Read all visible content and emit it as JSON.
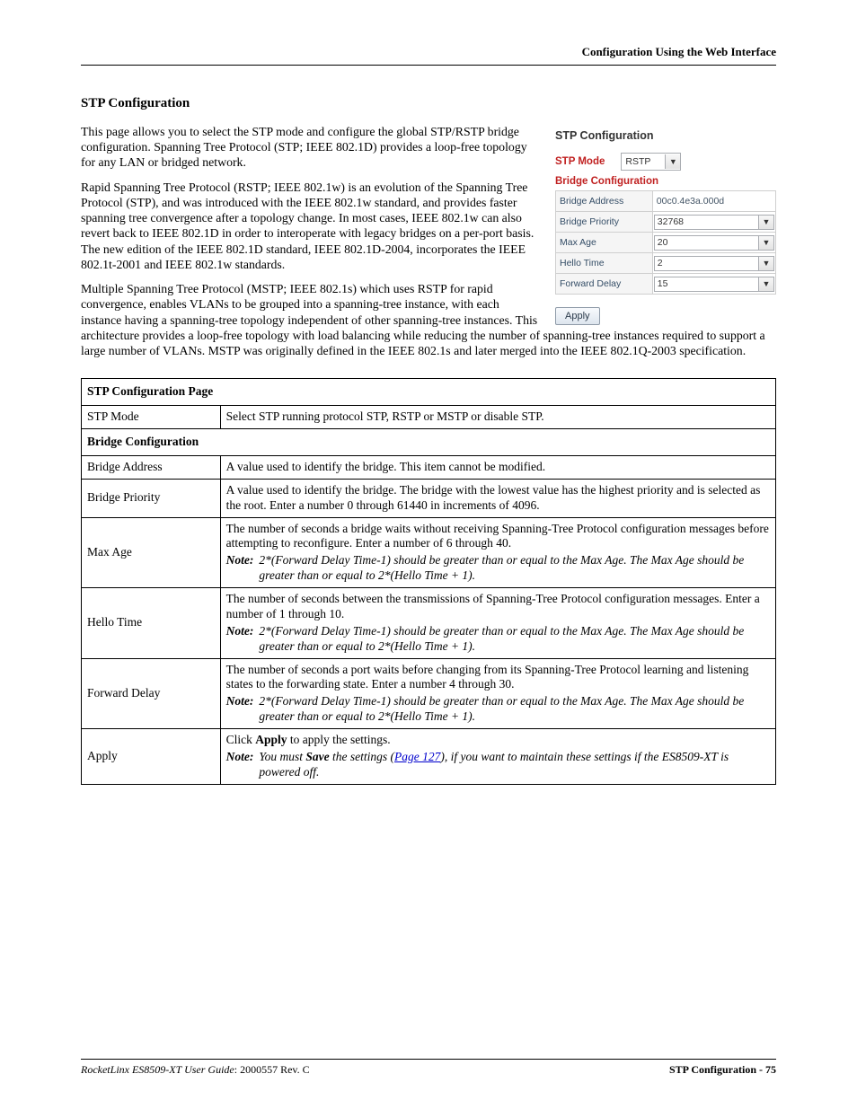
{
  "header_right": "Configuration Using the Web Interface",
  "section_title": "STP Configuration",
  "paragraphs": {
    "p1": "This page allows you to select the STP mode and configure the global STP/RSTP bridge configuration. Spanning Tree Protocol (STP; IEEE 802.1D) provides a loop-free topology for any LAN or bridged network.",
    "p2": "Rapid Spanning Tree Protocol (RSTP; IEEE 802.1w) is an evolution of the Spanning Tree Protocol (STP), and was introduced with the IEEE 802.1w standard, and provides faster spanning tree convergence after a topology change. In most cases, IEEE 802.1w can also revert back to IEEE 802.1D in order to interoperate with legacy bridges on a per-port basis. The new edition of the IEEE 802.1D standard, IEEE 802.1D-2004, incorporates the IEEE 802.1t-2001 and IEEE 802.1w standards.",
    "p3": "Multiple Spanning Tree Protocol (MSTP; IEEE 802.1s) which uses RSTP for rapid convergence, enables VLANs to be grouped into a spanning-tree instance, with each instance having a spanning-tree topology independent of other spanning-tree instances. This architecture provides a loop-free topology with load balancing while reducing the number of spanning-tree instances required to support a large number of VLANs. MSTP was originally defined in the IEEE 802.1s and later merged into the IEEE 802.1Q-2003 specification."
  },
  "panel": {
    "title": "STP Configuration",
    "mode_label": "STP Mode",
    "mode_value": "RSTP",
    "bridge_title": "Bridge Configuration",
    "rows": {
      "addr_label": "Bridge Address",
      "addr_value": "00c0.4e3a.000d",
      "prio_label": "Bridge Priority",
      "prio_value": "32768",
      "maxage_label": "Max Age",
      "maxage_value": "20",
      "hello_label": "Hello Time",
      "hello_value": "2",
      "fwd_label": "Forward Delay",
      "fwd_value": "15"
    },
    "apply_label": "Apply"
  },
  "table": {
    "head": "STP Configuration Page",
    "rows": {
      "stp_mode": {
        "label": "STP Mode",
        "desc": "Select STP running protocol STP, RSTP or MSTP or disable STP."
      },
      "bridge_cfg": {
        "label": "Bridge Configuration"
      },
      "bridge_addr": {
        "label": "Bridge Address",
        "desc": "A value used to identify the bridge. This item cannot be modified."
      },
      "bridge_prio": {
        "label": "Bridge Priority",
        "desc": "A value used to identify the bridge. The bridge with the lowest value has the highest priority and is selected as the root. Enter a number 0 through 61440 in increments of 4096."
      },
      "max_age": {
        "label": "Max Age",
        "desc": "The number of seconds a bridge waits without receiving Spanning-Tree Protocol configuration messages before attempting to reconfigure. Enter a number of 6 through 40.",
        "note": "2*(Forward Delay Time-1) should be greater than or equal to the Max Age. The Max Age should be greater than or equal to 2*(Hello Time + 1)."
      },
      "hello": {
        "label": "Hello Time",
        "desc": "The number of seconds between the transmissions of Spanning-Tree Protocol configuration messages. Enter a number of 1 through 10.",
        "note": "2*(Forward Delay Time-1) should be greater than or equal to the Max Age. The Max Age should be greater than or equal to 2*(Hello Time + 1)."
      },
      "fwd": {
        "label": "Forward Delay",
        "desc": "The number of seconds a port waits before changing from its Spanning-Tree Protocol learning and listening states to the forwarding state. Enter a number 4 through 30.",
        "note": "2*(Forward Delay Time-1) should be greater than or equal to the Max Age. The Max Age should be greater than or equal to 2*(Hello Time + 1)."
      },
      "apply": {
        "label": "Apply",
        "desc_pre": "Click ",
        "desc_b": "Apply",
        "desc_post": " to apply the settings.",
        "note_pre": "You must ",
        "note_b": "Save",
        "note_mid": " the settings (",
        "note_link": "Page 127",
        "note_post": "), if you want to maintain these settings if the ES8509-XT is powered off."
      }
    },
    "note_label": "Note:"
  },
  "footer": {
    "left_i": "RocketLinx ES8509-XT User Guide",
    "left_rev": ": 2000557 Rev. C",
    "right": "STP Configuration - 75"
  },
  "panel_colors": {
    "accent": "#c02020",
    "border": "#cfcfcf",
    "row_label_bg": "#f5f5f5"
  }
}
